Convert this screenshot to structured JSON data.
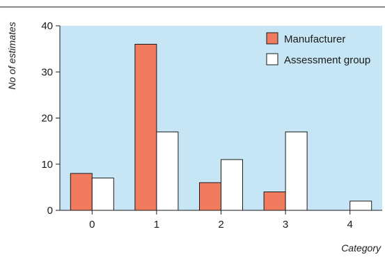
{
  "chart_data": {
    "type": "bar",
    "title": "",
    "xlabel": "Category",
    "ylabel": "No of estimates",
    "categories": [
      "0",
      "1",
      "2",
      "3",
      "4"
    ],
    "series": [
      {
        "name": "Manufacturer",
        "values": [
          8,
          36,
          6,
          4,
          0
        ]
      },
      {
        "name": "Assessment group",
        "values": [
          7,
          17,
          11,
          17,
          2
        ]
      }
    ],
    "ylim": [
      0,
      40
    ],
    "yticks": [
      "0",
      "10",
      "20",
      "30",
      "40"
    ],
    "grid": false,
    "legend_position": "top-right"
  },
  "colors": {
    "plot_background": "#c6e6f5",
    "manufacturer": "#f07b5e",
    "assessment_group": "#ffffff",
    "bar_stroke": "#1a1a1a"
  }
}
